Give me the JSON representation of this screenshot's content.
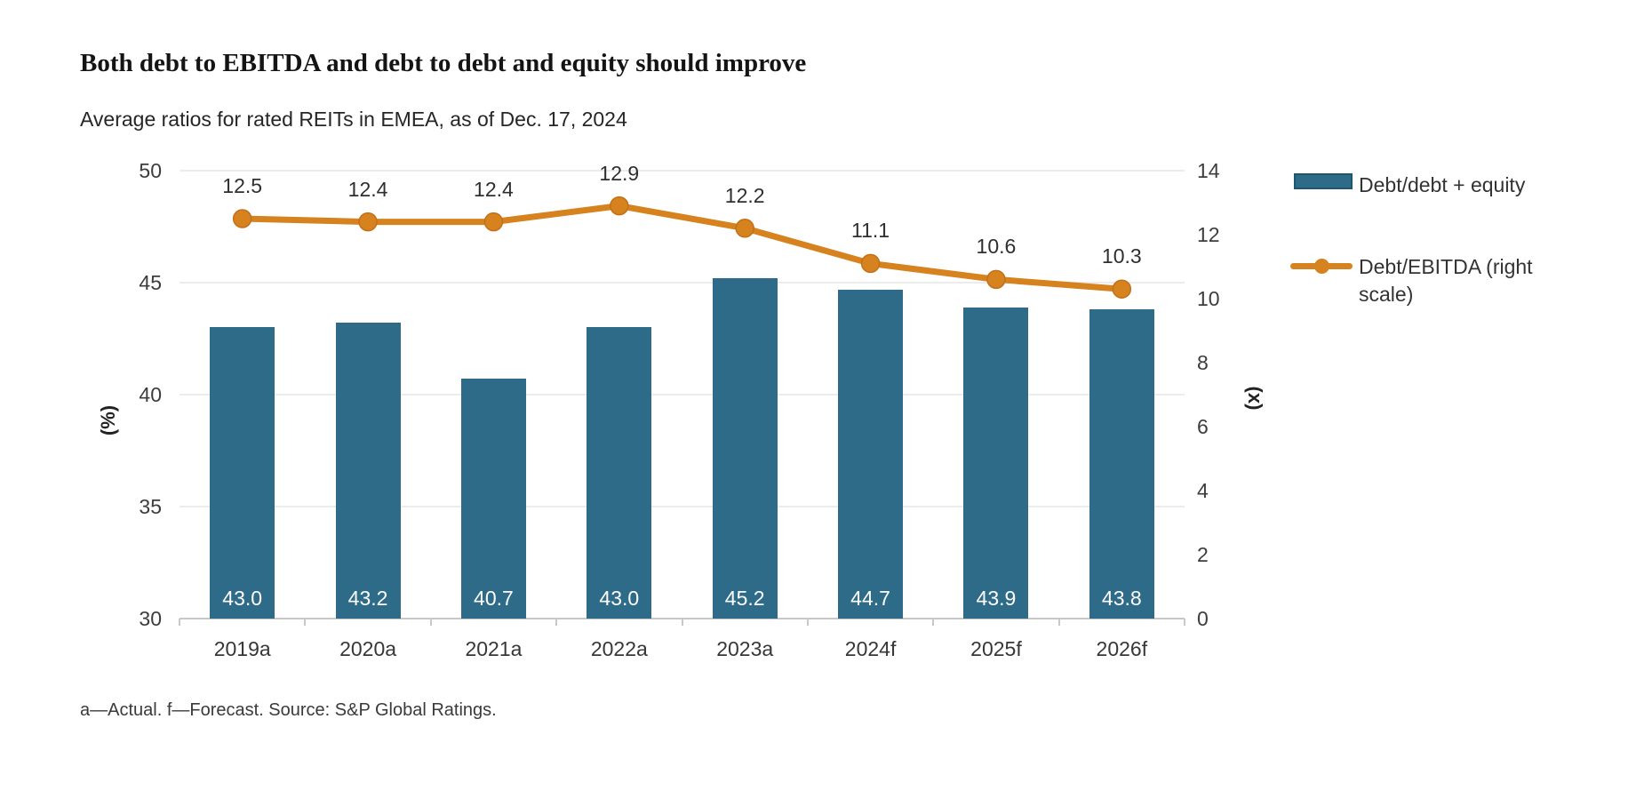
{
  "header": {
    "title": "Both debt to EBITDA and debt to debt and equity should improve",
    "subtitle": "Average ratios for rated REITs in EMEA, as of Dec. 17, 2024"
  },
  "footnote": "a—Actual. f—Forecast. Source: S&P Global Ratings.",
  "chart_data": {
    "type": "combo-bar-line",
    "categories": [
      "2019a",
      "2020a",
      "2021a",
      "2022a",
      "2023a",
      "2024f",
      "2025f",
      "2026f"
    ],
    "series": [
      {
        "name": "Debt/debt + equity",
        "type": "bar",
        "axis": "left",
        "unit": "%",
        "values": [
          43.0,
          43.2,
          40.7,
          43.0,
          45.2,
          44.7,
          43.9,
          43.8
        ],
        "color": "#2e6b89",
        "label_position": "inside-base",
        "label_color": "#ffffff"
      },
      {
        "name": "Debt/EBITDA (right scale)",
        "type": "line",
        "axis": "right",
        "unit": "x",
        "values": [
          12.5,
          12.4,
          12.4,
          12.9,
          12.2,
          11.1,
          10.6,
          10.3
        ],
        "color": "#d6821f",
        "marker": "circle",
        "label_position": "above"
      }
    ],
    "left_axis": {
      "title": "(%)",
      "min": 30,
      "max": 50,
      "ticks": [
        50,
        45,
        40,
        35,
        30
      ]
    },
    "right_axis": {
      "title": "(x)",
      "min": 0,
      "max": 14,
      "ticks": [
        14,
        12,
        10,
        8,
        6,
        4,
        2,
        0
      ]
    },
    "grid": "horizontal",
    "legend": {
      "position": "right",
      "items": [
        {
          "label": "Debt/debt + equity",
          "swatch": "bar",
          "color": "#2e6b89"
        },
        {
          "label": "Debt/EBITDA (right scale)",
          "swatch": "line",
          "color": "#d6821f"
        }
      ]
    }
  }
}
